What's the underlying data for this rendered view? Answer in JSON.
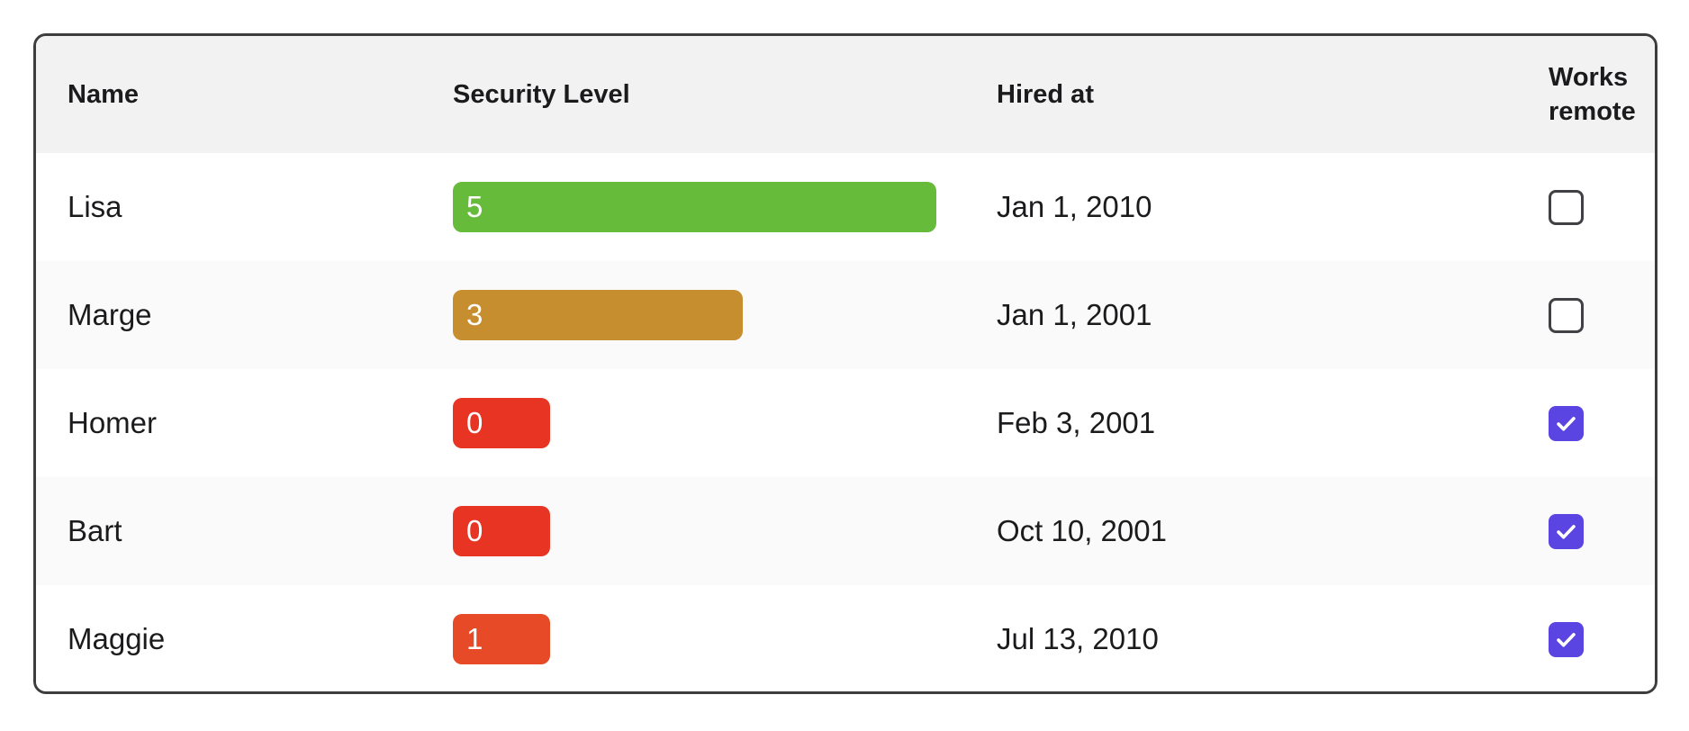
{
  "table": {
    "columns": [
      {
        "key": "name",
        "label": "Name"
      },
      {
        "key": "security_level",
        "label": "Security Level"
      },
      {
        "key": "hired_at",
        "label": "Hired at"
      },
      {
        "key": "works_remote",
        "label": "Works remote"
      }
    ],
    "security_level_max": 5,
    "rows": [
      {
        "name": "Lisa",
        "security_level": 5,
        "bar_color": "#66bb3a",
        "hired_at": "Jan 1, 2010",
        "works_remote": false
      },
      {
        "name": "Marge",
        "security_level": 3,
        "bar_color": "#c78e30",
        "hired_at": "Jan 1, 2001",
        "works_remote": false
      },
      {
        "name": "Homer",
        "security_level": 0,
        "bar_color": "#e83423",
        "hired_at": "Feb 3, 2001",
        "works_remote": true
      },
      {
        "name": "Bart",
        "security_level": 0,
        "bar_color": "#e83423",
        "hired_at": "Oct 10, 2001",
        "works_remote": true
      },
      {
        "name": "Maggie",
        "security_level": 1,
        "bar_color": "#e64a27",
        "hired_at": "Jul 13, 2010",
        "works_remote": true
      }
    ],
    "colors": {
      "header_bg": "#f2f2f2",
      "row_alt_bg": "#fafafa",
      "border": "#3d3d3d",
      "checkbox_checked": "#5b45e2",
      "checkbox_border": "#404045",
      "text": "#1b1b1d"
    }
  }
}
